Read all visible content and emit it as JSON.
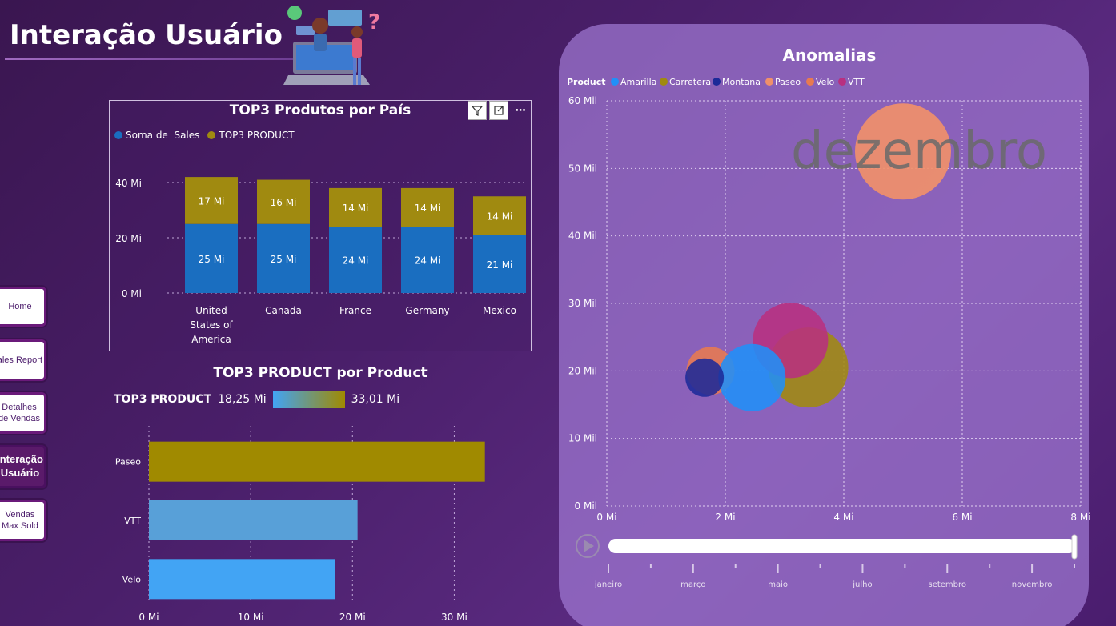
{
  "page_title": "Interação Usuário",
  "nav": [
    {
      "label": "Home"
    },
    {
      "label": "Sales Report"
    },
    {
      "label": "Detalhes de Vendas"
    },
    {
      "label": "Interação Usuário"
    },
    {
      "label": "Vendas Max Sold"
    }
  ],
  "chart1": {
    "title": "TOP3 Produtos por País",
    "legend": [
      "Soma de  Sales",
      "TOP3 PRODUCT"
    ],
    "colors": {
      "sales": "#1a6ec0",
      "top3": "#a08a10"
    },
    "tools": [
      "filter-icon",
      "focus-mode-icon",
      "more-options-icon"
    ]
  },
  "chart2": {
    "title": "TOP3 PRODUCT por Product",
    "legend_label": "TOP3 PRODUCT",
    "legend_min": "18,25 Mi",
    "legend_max": "33,01 Mi"
  },
  "chart3": {
    "title": "Anomalias",
    "legend_label": "Product",
    "watermark": "dezembro",
    "play_icon": "play-icon",
    "months": [
      "janeiro",
      "março",
      "maio",
      "julho",
      "setembro",
      "novembro"
    ]
  },
  "chart_data": [
    {
      "type": "bar",
      "title": "TOP3 Produtos por País",
      "stacked": true,
      "categories": [
        "United States of America",
        "Canada",
        "France",
        "Germany",
        "Mexico"
      ],
      "category_lines": [
        [
          "United",
          "States of",
          "America"
        ],
        [
          "Canada"
        ],
        [
          "France"
        ],
        [
          "Germany"
        ],
        [
          "Mexico"
        ]
      ],
      "series": [
        {
          "name": "Soma de  Sales",
          "color": "#1a6ec0",
          "values": [
            25,
            25,
            24,
            24,
            21
          ],
          "labels": [
            "25 Mi",
            "25 Mi",
            "24 Mi",
            "24 Mi",
            "21 Mi"
          ]
        },
        {
          "name": "TOP3 PRODUCT",
          "color": "#a08a10",
          "values": [
            17,
            16,
            14,
            14,
            14
          ],
          "labels": [
            "17 Mi",
            "16 Mi",
            "14 Mi",
            "14 Mi",
            "14 Mi"
          ]
        }
      ],
      "ylim": [
        0,
        40
      ],
      "yticks": [
        {
          "v": 0,
          "label": "0 Mi"
        },
        {
          "v": 20,
          "label": "20 Mi"
        },
        {
          "v": 40,
          "label": "40 Mi"
        }
      ],
      "legend": "top-left",
      "grid": true
    },
    {
      "type": "bar",
      "orientation": "horizontal",
      "title": "TOP3 PRODUCT por Product",
      "categories": [
        "Paseo",
        "VTT",
        "Velo"
      ],
      "values": [
        33.01,
        20.5,
        18.25
      ],
      "colors": [
        "#a08a00",
        "#58a0d8",
        "#42a4f4"
      ],
      "xlim": [
        0,
        35
      ],
      "xticks": [
        {
          "v": 0,
          "label": "0 Mi"
        },
        {
          "v": 10,
          "label": "10 Mi"
        },
        {
          "v": 20,
          "label": "20 Mi"
        },
        {
          "v": 30,
          "label": "30 Mi"
        }
      ],
      "grid": true
    },
    {
      "type": "scatter",
      "title": "Anomalias",
      "legend": "top-left",
      "series": [
        {
          "name": "Amarilla",
          "color": "#2090f8"
        },
        {
          "name": "Carretera",
          "color": "#a08a10"
        },
        {
          "name": "Montana",
          "color": "#1c2a98"
        },
        {
          "name": "Paseo",
          "color": "#f0906a"
        },
        {
          "name": "Velo",
          "color": "#e87a50"
        },
        {
          "name": "VTT",
          "color": "#b83080"
        }
      ],
      "points": [
        {
          "series": "Paseo",
          "x": 5.0,
          "y": 52.5,
          "r": 60,
          "color": "#f0906a"
        },
        {
          "series": "Carretera",
          "x": 3.4,
          "y": 20.5,
          "r": 50,
          "color": "#a08a10"
        },
        {
          "series": "VTT",
          "x": 3.1,
          "y": 24.5,
          "r": 47,
          "color": "#b83080"
        },
        {
          "series": "Velo",
          "x": 1.75,
          "y": 20.0,
          "r": 30,
          "color": "#e87a50"
        },
        {
          "series": "Amarilla",
          "x": 2.45,
          "y": 19.0,
          "r": 42,
          "color": "#2090f8"
        },
        {
          "series": "Montana",
          "x": 1.65,
          "y": 19.0,
          "r": 24,
          "color": "#1c2a98"
        }
      ],
      "xlim": [
        0,
        8
      ],
      "ylim": [
        0,
        60
      ],
      "xticks": [
        {
          "v": 0,
          "label": "0 Mi"
        },
        {
          "v": 2,
          "label": "2 Mi"
        },
        {
          "v": 4,
          "label": "4 Mi"
        },
        {
          "v": 6,
          "label": "6 Mi"
        },
        {
          "v": 8,
          "label": "8 Mi"
        }
      ],
      "yticks": [
        {
          "v": 0,
          "label": "0 Mil"
        },
        {
          "v": 10,
          "label": "10 Mil"
        },
        {
          "v": 20,
          "label": "20 Mil"
        },
        {
          "v": 30,
          "label": "30 Mil"
        },
        {
          "v": 40,
          "label": "40 Mil"
        },
        {
          "v": 50,
          "label": "50 Mil"
        },
        {
          "v": 60,
          "label": "60 Mil"
        }
      ],
      "grid": true
    }
  ]
}
